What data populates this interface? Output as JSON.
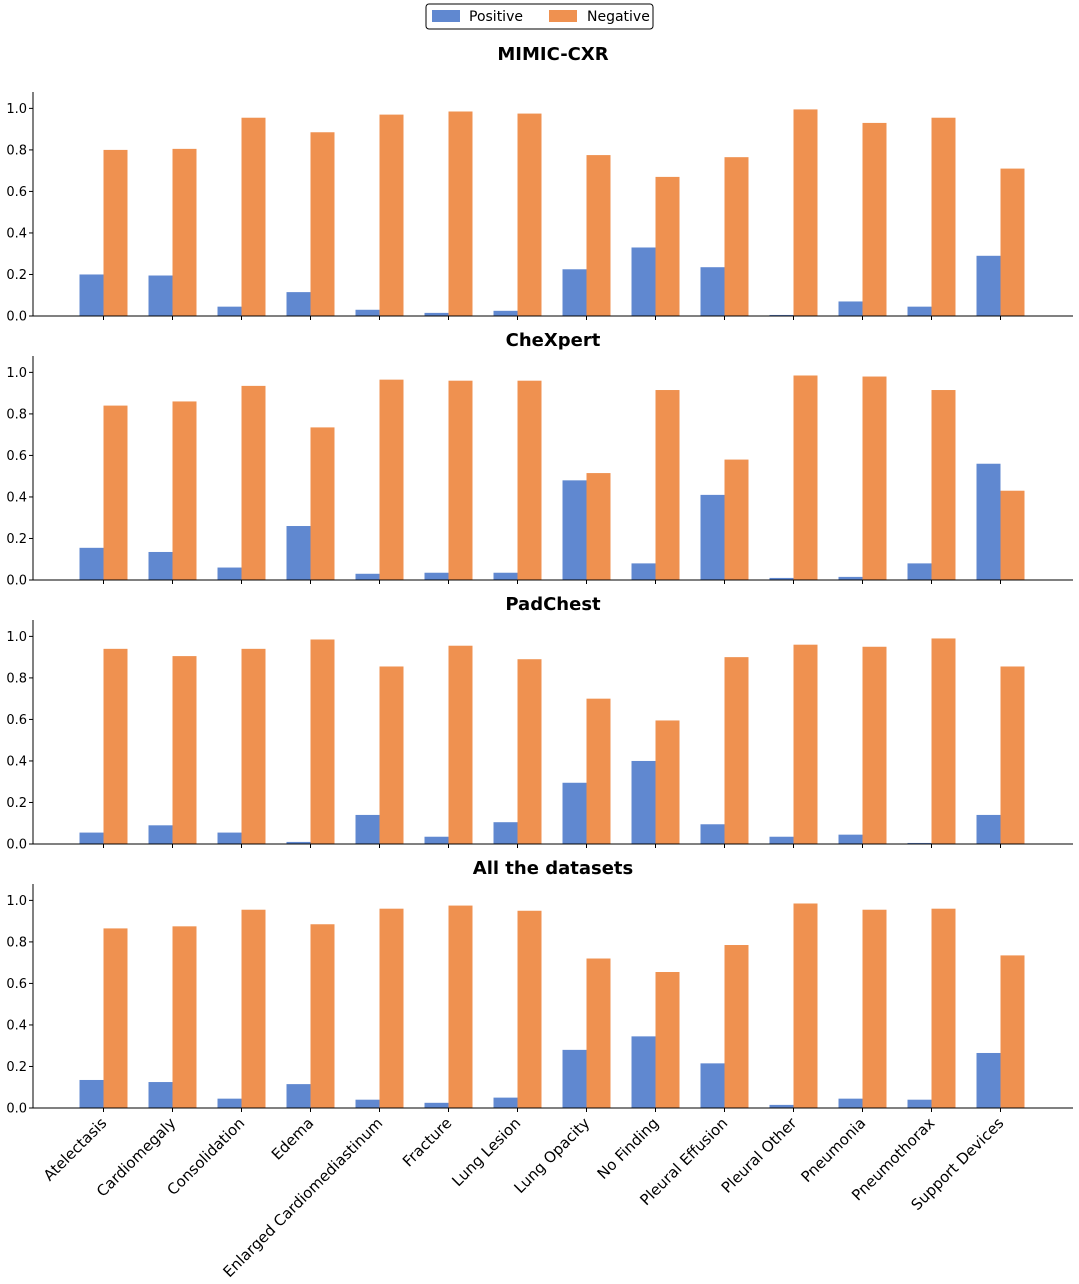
{
  "colors": {
    "positive": "#6088d0",
    "negative": "#ef9150"
  },
  "legend": {
    "positive": "Positive",
    "negative": "Negative"
  },
  "chart_data": {
    "type": "bar",
    "categories": [
      "Atelectasis",
      "Cardiomegaly",
      "Consolidation",
      "Edema",
      "Enlarged Cardiomediastinum",
      "Fracture",
      "Lung Lesion",
      "Lung Opacity",
      "No Finding",
      "Pleural Effusion",
      "Pleural Other",
      "Pneumonia",
      "Pneumothorax",
      "Support Devices"
    ],
    "yticks": [
      "0.0",
      "0.2",
      "0.4",
      "0.6",
      "0.8",
      "1.0"
    ],
    "ylim": [
      0,
      1.05
    ],
    "panels": [
      {
        "title": "MIMIC-CXR",
        "series": [
          {
            "name": "Positive",
            "values": [
              0.2,
              0.195,
              0.045,
              0.115,
              0.03,
              0.015,
              0.025,
              0.225,
              0.33,
              0.235,
              0.005,
              0.07,
              0.045,
              0.29
            ]
          },
          {
            "name": "Negative",
            "values": [
              0.8,
              0.805,
              0.955,
              0.885,
              0.97,
              0.985,
              0.975,
              0.775,
              0.67,
              0.765,
              0.995,
              0.93,
              0.955,
              0.71
            ]
          }
        ]
      },
      {
        "title": "CheXpert",
        "series": [
          {
            "name": "Positive",
            "values": [
              0.155,
              0.135,
              0.06,
              0.26,
              0.03,
              0.035,
              0.035,
              0.48,
              0.08,
              0.41,
              0.01,
              0.015,
              0.08,
              0.56
            ]
          },
          {
            "name": "Negative",
            "values": [
              0.84,
              0.86,
              0.935,
              0.735,
              0.965,
              0.96,
              0.96,
              0.515,
              0.915,
              0.58,
              0.985,
              0.98,
              0.915,
              0.43
            ]
          }
        ]
      },
      {
        "title": "PadChest",
        "series": [
          {
            "name": "Positive",
            "values": [
              0.055,
              0.09,
              0.055,
              0.01,
              0.14,
              0.035,
              0.105,
              0.295,
              0.4,
              0.095,
              0.035,
              0.045,
              0.005,
              0.14
            ]
          },
          {
            "name": "Negative",
            "values": [
              0.94,
              0.905,
              0.94,
              0.985,
              0.855,
              0.955,
              0.89,
              0.7,
              0.595,
              0.9,
              0.96,
              0.95,
              0.99,
              0.855
            ]
          }
        ]
      },
      {
        "title": "All the datasets",
        "series": [
          {
            "name": "Positive",
            "values": [
              0.135,
              0.125,
              0.045,
              0.115,
              0.04,
              0.025,
              0.05,
              0.28,
              0.345,
              0.215,
              0.015,
              0.045,
              0.04,
              0.265
            ]
          },
          {
            "name": "Negative",
            "values": [
              0.865,
              0.875,
              0.955,
              0.885,
              0.96,
              0.975,
              0.95,
              0.72,
              0.655,
              0.785,
              0.985,
              0.955,
              0.96,
              0.735
            ]
          }
        ]
      }
    ]
  }
}
